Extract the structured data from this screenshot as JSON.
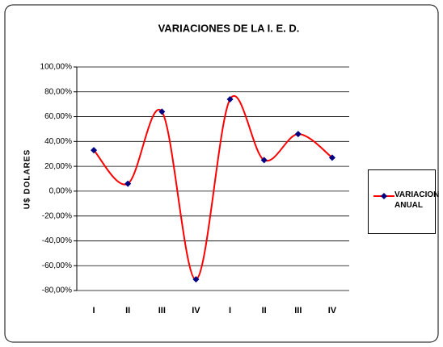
{
  "chart_data": {
    "type": "line",
    "title": "VARIACIONES DE LA I. E. D.",
    "y_label": "U$ DOLARES",
    "categories": [
      "I",
      "II",
      "III",
      "IV",
      "I",
      "II",
      "III",
      "IV"
    ],
    "series": [
      {
        "name": "VARIACION ANUAL",
        "color": "#ff0000",
        "marker_color": "#000080",
        "values": [
          33,
          6,
          64,
          -71,
          74,
          25,
          46,
          27
        ]
      }
    ],
    "ylim": [
      -80,
      100
    ],
    "yticks": [
      {
        "value": -80,
        "label": "-80,00%"
      },
      {
        "value": -60,
        "label": "-60,00%"
      },
      {
        "value": -40,
        "label": "-40,00%"
      },
      {
        "value": -20,
        "label": "-20,00%"
      },
      {
        "value": 0,
        "label": "0,00%"
      },
      {
        "value": 20,
        "label": "20,00%"
      },
      {
        "value": 40,
        "label": "40,00%"
      },
      {
        "value": 60,
        "label": "60,00%"
      },
      {
        "value": 80,
        "label": "80,00%"
      },
      {
        "value": 100,
        "label": "100,00%"
      }
    ],
    "grid": true,
    "smooth": true,
    "legend": "right"
  }
}
